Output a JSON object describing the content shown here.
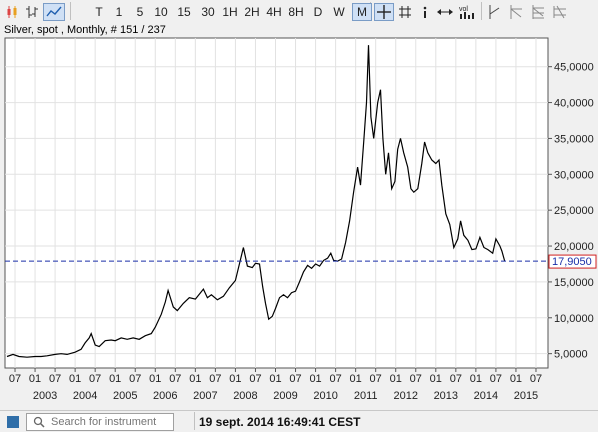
{
  "toolbar": {
    "periods": [
      "T",
      "1",
      "5",
      "10",
      "15",
      "30",
      "1H",
      "2H",
      "4H",
      "8H",
      "D",
      "W",
      "M"
    ],
    "selected_period": "M",
    "tools": [
      "candlestick-icon",
      "ohlc-icon",
      "line-chart-icon",
      "crosshair-icon",
      "grid-icon",
      "info-icon",
      "pan-icon",
      "volume-icon",
      "trendline-icon",
      "fibonacci-icon",
      "pitchfork-icon",
      "settings-icon"
    ]
  },
  "chart": {
    "title": "Silver, spot , Monthly, # 151 / 237",
    "current_price_label": "17,9050",
    "current_price": 17.905
  },
  "chart_data": {
    "type": "line",
    "ylim": [
      3,
      49
    ],
    "y_ticks": [
      {
        "value": 5,
        "label": "5,0000"
      },
      {
        "value": 10,
        "label": "10,0000"
      },
      {
        "value": 15,
        "label": "15,0000"
      },
      {
        "value": 20,
        "label": "20,0000"
      },
      {
        "value": 25,
        "label": "25,0000"
      },
      {
        "value": 30,
        "label": "30,0000"
      },
      {
        "value": 35,
        "label": "35,0000"
      },
      {
        "value": 40,
        "label": "40,0000"
      },
      {
        "value": 45,
        "label": "45,0000"
      }
    ],
    "xlim": [
      2002.25,
      2015.8
    ],
    "month_ticks": [
      {
        "pos": 2002.5,
        "label": "07"
      },
      {
        "pos": 2003.0,
        "label": "01"
      },
      {
        "pos": 2003.5,
        "label": "07"
      },
      {
        "pos": 2004.0,
        "label": "01"
      },
      {
        "pos": 2004.5,
        "label": "07"
      },
      {
        "pos": 2005.0,
        "label": "01"
      },
      {
        "pos": 2005.5,
        "label": "07"
      },
      {
        "pos": 2006.0,
        "label": "01"
      },
      {
        "pos": 2006.5,
        "label": "07"
      },
      {
        "pos": 2007.0,
        "label": "01"
      },
      {
        "pos": 2007.5,
        "label": "07"
      },
      {
        "pos": 2008.0,
        "label": "01"
      },
      {
        "pos": 2008.5,
        "label": "07"
      },
      {
        "pos": 2009.0,
        "label": "01"
      },
      {
        "pos": 2009.5,
        "label": "07"
      },
      {
        "pos": 2010.0,
        "label": "01"
      },
      {
        "pos": 2010.5,
        "label": "07"
      },
      {
        "pos": 2011.0,
        "label": "01"
      },
      {
        "pos": 2011.5,
        "label": "07"
      },
      {
        "pos": 2012.0,
        "label": "01"
      },
      {
        "pos": 2012.5,
        "label": "07"
      },
      {
        "pos": 2013.0,
        "label": "01"
      },
      {
        "pos": 2013.5,
        "label": "07"
      },
      {
        "pos": 2014.0,
        "label": "01"
      },
      {
        "pos": 2014.5,
        "label": "07"
      },
      {
        "pos": 2015.0,
        "label": "01"
      },
      {
        "pos": 2015.5,
        "label": "07"
      }
    ],
    "year_ticks": [
      {
        "pos": 2003.25,
        "label": "2003"
      },
      {
        "pos": 2004.25,
        "label": "2004"
      },
      {
        "pos": 2005.25,
        "label": "2005"
      },
      {
        "pos": 2006.25,
        "label": "2006"
      },
      {
        "pos": 2007.25,
        "label": "2007"
      },
      {
        "pos": 2008.25,
        "label": "2008"
      },
      {
        "pos": 2009.25,
        "label": "2009"
      },
      {
        "pos": 2010.25,
        "label": "2010"
      },
      {
        "pos": 2011.25,
        "label": "2011"
      },
      {
        "pos": 2012.25,
        "label": "2012"
      },
      {
        "pos": 2013.25,
        "label": "2013"
      },
      {
        "pos": 2014.25,
        "label": "2014"
      },
      {
        "pos": 2015.25,
        "label": "2015"
      }
    ],
    "points": [
      [
        2002.3,
        4.6
      ],
      [
        2002.45,
        4.9
      ],
      [
        2002.6,
        4.6
      ],
      [
        2002.8,
        4.5
      ],
      [
        2003.0,
        4.6
      ],
      [
        2003.15,
        4.6
      ],
      [
        2003.3,
        4.7
      ],
      [
        2003.5,
        4.9
      ],
      [
        2003.65,
        5.0
      ],
      [
        2003.8,
        4.9
      ],
      [
        2004.0,
        5.2
      ],
      [
        2004.15,
        5.6
      ],
      [
        2004.25,
        6.5
      ],
      [
        2004.35,
        7.2
      ],
      [
        2004.4,
        7.8
      ],
      [
        2004.5,
        6.2
      ],
      [
        2004.6,
        6.0
      ],
      [
        2004.75,
        6.8
      ],
      [
        2004.9,
        6.9
      ],
      [
        2005.0,
        6.8
      ],
      [
        2005.15,
        7.2
      ],
      [
        2005.3,
        7.0
      ],
      [
        2005.45,
        7.2
      ],
      [
        2005.6,
        7.0
      ],
      [
        2005.75,
        7.5
      ],
      [
        2005.9,
        7.8
      ],
      [
        2006.0,
        8.7
      ],
      [
        2006.15,
        10.5
      ],
      [
        2006.25,
        12.2
      ],
      [
        2006.32,
        13.8
      ],
      [
        2006.45,
        11.5
      ],
      [
        2006.55,
        11.0
      ],
      [
        2006.7,
        12.0
      ],
      [
        2006.85,
        12.8
      ],
      [
        2007.0,
        12.6
      ],
      [
        2007.1,
        13.3
      ],
      [
        2007.2,
        14.0
      ],
      [
        2007.3,
        12.8
      ],
      [
        2007.4,
        13.2
      ],
      [
        2007.55,
        12.5
      ],
      [
        2007.7,
        13.0
      ],
      [
        2007.85,
        14.2
      ],
      [
        2008.0,
        15.2
      ],
      [
        2008.1,
        17.5
      ],
      [
        2008.2,
        19.8
      ],
      [
        2008.3,
        17.2
      ],
      [
        2008.42,
        17.0
      ],
      [
        2008.5,
        17.6
      ],
      [
        2008.6,
        17.5
      ],
      [
        2008.68,
        14.3
      ],
      [
        2008.75,
        12.0
      ],
      [
        2008.83,
        9.8
      ],
      [
        2008.92,
        10.2
      ],
      [
        2009.0,
        11.3
      ],
      [
        2009.1,
        12.8
      ],
      [
        2009.2,
        13.2
      ],
      [
        2009.3,
        12.8
      ],
      [
        2009.4,
        13.5
      ],
      [
        2009.5,
        13.7
      ],
      [
        2009.6,
        15.0
      ],
      [
        2009.7,
        16.4
      ],
      [
        2009.8,
        17.3
      ],
      [
        2009.9,
        16.9
      ],
      [
        2010.0,
        17.5
      ],
      [
        2010.1,
        17.2
      ],
      [
        2010.2,
        18.0
      ],
      [
        2010.3,
        18.3
      ],
      [
        2010.38,
        19.0
      ],
      [
        2010.45,
        18.0
      ],
      [
        2010.55,
        17.9
      ],
      [
        2010.65,
        18.2
      ],
      [
        2010.75,
        20.5
      ],
      [
        2010.85,
        23.5
      ],
      [
        2010.95,
        27.5
      ],
      [
        2011.05,
        31.0
      ],
      [
        2011.12,
        28.5
      ],
      [
        2011.2,
        34.5
      ],
      [
        2011.27,
        40.0
      ],
      [
        2011.32,
        48.0
      ],
      [
        2011.38,
        38.0
      ],
      [
        2011.45,
        35.0
      ],
      [
        2011.55,
        40.0
      ],
      [
        2011.62,
        41.8
      ],
      [
        2011.68,
        35.0
      ],
      [
        2011.75,
        30.0
      ],
      [
        2011.82,
        33.0
      ],
      [
        2011.9,
        28.0
      ],
      [
        2011.98,
        29.0
      ],
      [
        2012.05,
        33.5
      ],
      [
        2012.12,
        35.0
      ],
      [
        2012.2,
        33.0
      ],
      [
        2012.3,
        31.0
      ],
      [
        2012.38,
        28.0
      ],
      [
        2012.45,
        27.5
      ],
      [
        2012.55,
        28.0
      ],
      [
        2012.65,
        31.5
      ],
      [
        2012.72,
        34.5
      ],
      [
        2012.8,
        33.0
      ],
      [
        2012.9,
        32.0
      ],
      [
        2013.0,
        31.5
      ],
      [
        2013.08,
        32.0
      ],
      [
        2013.15,
        28.5
      ],
      [
        2013.25,
        24.5
      ],
      [
        2013.35,
        23.0
      ],
      [
        2013.45,
        19.8
      ],
      [
        2013.55,
        21.0
      ],
      [
        2013.62,
        23.5
      ],
      [
        2013.7,
        21.5
      ],
      [
        2013.8,
        20.8
      ],
      [
        2013.9,
        19.5
      ],
      [
        2014.0,
        19.6
      ],
      [
        2014.1,
        21.2
      ],
      [
        2014.2,
        19.8
      ],
      [
        2014.3,
        19.5
      ],
      [
        2014.42,
        19.0
      ],
      [
        2014.5,
        21.0
      ],
      [
        2014.6,
        20.0
      ],
      [
        2014.65,
        19.3
      ],
      [
        2014.72,
        17.9
      ]
    ]
  },
  "statusbar": {
    "search_placeholder": "Search for instrument",
    "timestamp": "19 sept. 2014 16:49:41 CEST"
  }
}
